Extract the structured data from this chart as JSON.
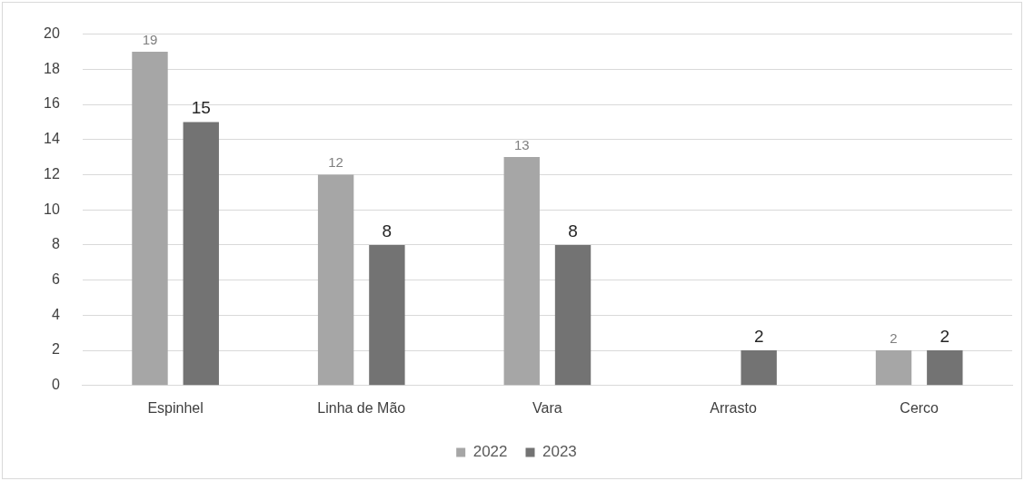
{
  "chart_data": {
    "type": "bar",
    "categories": [
      "Espinhel",
      "Linha de Mão",
      "Vara",
      "Arrasto",
      "Cerco"
    ],
    "series": [
      {
        "name": "2022",
        "color": "#a6a6a6",
        "values": [
          19,
          12,
          13,
          null,
          2
        ]
      },
      {
        "name": "2023",
        "color": "#737373",
        "values": [
          15,
          8,
          8,
          2,
          2
        ]
      }
    ],
    "ylim": [
      0,
      20
    ],
    "yticks": [
      0,
      2,
      4,
      6,
      8,
      10,
      12,
      14,
      16,
      18,
      20
    ],
    "grid": "y",
    "legend": "bottom",
    "data_labels": true
  }
}
